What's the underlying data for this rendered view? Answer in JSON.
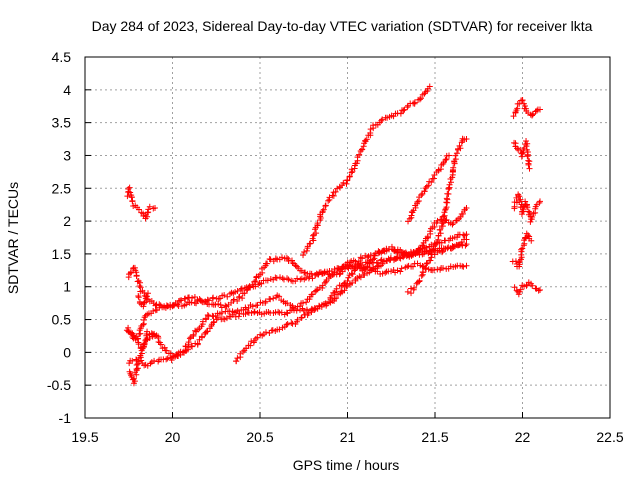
{
  "chart_data": {
    "type": "scatter",
    "title": "Day 284 of 2023, Sidereal Day-to-day VTEC variation (SDTVAR) for receiver lkta",
    "xlabel": "GPS time / hours",
    "ylabel": "SDTVAR / TECUs",
    "xlim": [
      19.5,
      22.5
    ],
    "ylim": [
      -1,
      4.5
    ],
    "xticks": [
      "19.5",
      "20",
      "20.5",
      "21",
      "21.5",
      "22",
      "22.5"
    ],
    "yticks": [
      "-1",
      "-0.5",
      "0",
      "0.5",
      "1",
      "1.5",
      "2",
      "2.5",
      "3",
      "3.5",
      "4",
      "4.5"
    ],
    "grid": true,
    "marker": "+",
    "color": "#ff0000",
    "series": [
      {
        "name": "trace-1",
        "segments": [
          [
            [
              19.75,
              1.15
            ],
            [
              19.78,
              1.3
            ],
            [
              19.82,
              0.95
            ],
            [
              19.9,
              0.72
            ],
            [
              20.0,
              0.7
            ],
            [
              20.1,
              0.75
            ],
            [
              20.2,
              0.8
            ],
            [
              20.3,
              0.85
            ],
            [
              20.4,
              0.95
            ],
            [
              20.5,
              1.05
            ],
            [
              20.6,
              1.15
            ],
            [
              20.7,
              1.1
            ],
            [
              20.8,
              1.15
            ],
            [
              20.9,
              1.25
            ],
            [
              21.0,
              1.3
            ],
            [
              21.1,
              1.35
            ],
            [
              21.2,
              1.4
            ],
            [
              21.3,
              1.45
            ],
            [
              21.4,
              1.5
            ],
            [
              21.5,
              1.55
            ],
            [
              21.6,
              1.6
            ],
            [
              21.68,
              1.65
            ]
          ]
        ]
      },
      {
        "name": "trace-2",
        "segments": [
          [
            [
              19.75,
              0.35
            ],
            [
              19.8,
              0.2
            ],
            [
              19.85,
              0.55
            ],
            [
              19.9,
              0.65
            ],
            [
              20.0,
              0.72
            ],
            [
              20.1,
              0.85
            ],
            [
              20.2,
              0.75
            ],
            [
              20.3,
              0.7
            ],
            [
              20.4,
              0.85
            ],
            [
              20.5,
              1.2
            ],
            [
              20.55,
              1.4
            ],
            [
              20.65,
              1.45
            ],
            [
              20.75,
              1.2
            ],
            [
              20.85,
              1.2
            ],
            [
              20.95,
              1.2
            ],
            [
              21.0,
              1.3
            ],
            [
              21.1,
              1.3
            ],
            [
              21.2,
              1.2
            ],
            [
              21.3,
              1.25
            ],
            [
              21.4,
              1.35
            ],
            [
              21.5,
              1.25
            ],
            [
              21.6,
              1.3
            ],
            [
              21.68,
              1.32
            ]
          ]
        ]
      },
      {
        "name": "trace-3",
        "segments": [
          [
            [
              19.75,
              -0.3
            ],
            [
              19.78,
              -0.45
            ],
            [
              19.8,
              -0.2
            ],
            [
              19.85,
              0.2
            ],
            [
              19.9,
              0.3
            ],
            [
              19.95,
              0.05
            ],
            [
              20.0,
              -0.05
            ],
            [
              20.05,
              -0.05
            ],
            [
              20.1,
              0.2
            ],
            [
              20.2,
              0.55
            ],
            [
              20.3,
              0.6
            ],
            [
              20.4,
              0.65
            ],
            [
              20.5,
              0.75
            ],
            [
              20.6,
              0.85
            ],
            [
              20.7,
              0.65
            ],
            [
              20.8,
              0.65
            ],
            [
              20.9,
              0.75
            ],
            [
              21.0,
              1.0
            ],
            [
              21.1,
              1.2
            ],
            [
              21.2,
              1.35
            ],
            [
              21.3,
              1.45
            ],
            [
              21.4,
              1.55
            ],
            [
              21.5,
              1.5
            ],
            [
              21.6,
              1.6
            ],
            [
              21.68,
              1.72
            ]
          ]
        ]
      },
      {
        "name": "trace-4",
        "segments": [
          [
            [
              19.75,
              -0.15
            ],
            [
              19.8,
              -0.1
            ],
            [
              19.85,
              -0.2
            ],
            [
              19.95,
              -0.1
            ],
            [
              20.0,
              -0.1
            ],
            [
              20.05,
              0.0
            ],
            [
              20.15,
              0.15
            ],
            [
              20.25,
              0.5
            ],
            [
              20.35,
              0.55
            ],
            [
              20.45,
              0.6
            ],
            [
              20.55,
              0.6
            ],
            [
              20.65,
              0.6
            ],
            [
              20.75,
              0.75
            ],
            [
              20.85,
              1.0
            ],
            [
              20.92,
              1.2
            ],
            [
              21.0,
              1.35
            ],
            [
              21.1,
              1.45
            ],
            [
              21.2,
              1.55
            ],
            [
              21.3,
              1.55
            ],
            [
              21.35,
              1.45
            ],
            [
              21.4,
              1.55
            ],
            [
              21.5,
              1.65
            ],
            [
              21.6,
              1.75
            ],
            [
              21.68,
              1.8
            ]
          ]
        ]
      },
      {
        "name": "trace-5",
        "segments": [
          [
            [
              20.36,
              -0.15
            ],
            [
              20.4,
              0.0
            ],
            [
              20.45,
              0.15
            ],
            [
              20.5,
              0.25
            ],
            [
              20.6,
              0.35
            ],
            [
              20.7,
              0.45
            ],
            [
              20.8,
              0.65
            ],
            [
              20.9,
              0.8
            ],
            [
              20.95,
              1.0
            ],
            [
              21.0,
              1.1
            ],
            [
              21.05,
              1.3
            ],
            [
              21.1,
              1.25
            ],
            [
              21.15,
              1.45
            ],
            [
              21.2,
              1.55
            ],
            [
              21.25,
              1.6
            ],
            [
              21.3,
              1.5
            ],
            [
              21.4,
              1.5
            ],
            [
              21.5,
              1.95
            ],
            [
              21.55,
              2.05
            ],
            [
              21.6,
              1.95
            ],
            [
              21.65,
              2.1
            ],
            [
              21.68,
              2.2
            ]
          ]
        ]
      },
      {
        "name": "trace-6",
        "segments": [
          [
            [
              20.75,
              1.5
            ],
            [
              20.8,
              1.7
            ],
            [
              20.85,
              2.1
            ],
            [
              20.9,
              2.35
            ],
            [
              20.95,
              2.5
            ],
            [
              21.0,
              2.6
            ],
            [
              21.05,
              2.9
            ],
            [
              21.1,
              3.2
            ],
            [
              21.15,
              3.45
            ],
            [
              21.2,
              3.55
            ],
            [
              21.3,
              3.65
            ],
            [
              21.35,
              3.75
            ],
            [
              21.4,
              3.85
            ],
            [
              21.45,
              3.95
            ],
            [
              21.47,
              4.05
            ]
          ],
          [
            [
              21.35,
              0.9
            ],
            [
              21.4,
              1.05
            ],
            [
              21.45,
              1.3
            ],
            [
              21.5,
              1.6
            ],
            [
              21.55,
              2.0
            ],
            [
              21.58,
              2.5
            ],
            [
              21.62,
              3.0
            ],
            [
              21.66,
              3.25
            ],
            [
              21.68,
              3.25
            ]
          ],
          [
            [
              21.35,
              2.0
            ],
            [
              21.4,
              2.3
            ],
            [
              21.45,
              2.5
            ],
            [
              21.5,
              2.7
            ],
            [
              21.55,
              2.9
            ],
            [
              21.58,
              3.0
            ]
          ]
        ]
      },
      {
        "name": "trace-7",
        "segments": [
          [
            [
              19.74,
              2.4
            ],
            [
              19.75,
              2.5
            ],
            [
              19.78,
              2.25
            ],
            [
              19.82,
              2.15
            ],
            [
              19.85,
              2.05
            ],
            [
              19.87,
              2.2
            ],
            [
              19.9,
              2.2
            ]
          ],
          [
            [
              19.74,
              0.35
            ],
            [
              19.8,
              0.15
            ],
            [
              19.83,
              0.05
            ],
            [
              19.86,
              0.3
            ],
            [
              19.9,
              0.25
            ]
          ],
          [
            [
              19.8,
              0.85
            ],
            [
              19.83,
              0.7
            ],
            [
              19.86,
              0.9
            ]
          ]
        ]
      },
      {
        "name": "trace-8",
        "segments": [
          [
            [
              21.95,
              3.6
            ],
            [
              21.98,
              3.8
            ],
            [
              22.0,
              3.85
            ],
            [
              22.02,
              3.7
            ],
            [
              22.05,
              3.6
            ],
            [
              22.08,
              3.7
            ],
            [
              22.1,
              3.7
            ]
          ],
          [
            [
              21.95,
              3.2
            ],
            [
              21.98,
              3.1
            ],
            [
              22.0,
              3.0
            ],
            [
              22.02,
              3.2
            ],
            [
              22.04,
              2.8
            ]
          ],
          [
            [
              21.95,
              2.2
            ],
            [
              21.98,
              2.4
            ],
            [
              22.0,
              2.1
            ],
            [
              22.02,
              2.3
            ],
            [
              22.05,
              2.0
            ],
            [
              22.08,
              2.2
            ],
            [
              22.1,
              2.3
            ]
          ],
          [
            [
              21.95,
              1.4
            ],
            [
              21.98,
              1.3
            ],
            [
              22.0,
              1.6
            ],
            [
              22.02,
              1.8
            ],
            [
              22.05,
              1.7
            ]
          ],
          [
            [
              21.96,
              1.0
            ],
            [
              21.98,
              0.9
            ],
            [
              22.0,
              1.0
            ],
            [
              22.04,
              1.05
            ],
            [
              22.08,
              0.95
            ],
            [
              22.1,
              0.95
            ]
          ]
        ]
      }
    ]
  }
}
